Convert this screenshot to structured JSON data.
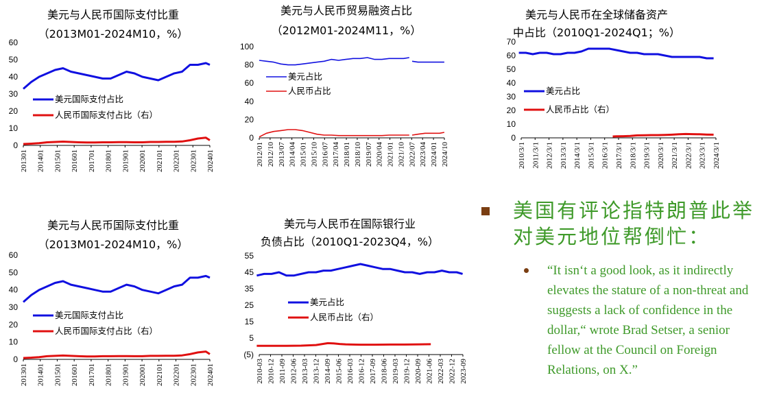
{
  "chart_data": [
    {
      "id": "chart1",
      "type": "line",
      "title": "美元与人民币国际支付比重",
      "subtitle": "（2013M01-2024M10，%）",
      "ylim": [
        0,
        60
      ],
      "yticks": [
        0,
        10,
        20,
        30,
        40,
        50,
        60
      ],
      "xticks": [
        "201301",
        "201401",
        "201501",
        "201601",
        "201701",
        "201801",
        "201901",
        "202001",
        "202101",
        "202201",
        "202301",
        "202401"
      ],
      "x_range": [
        "2013-01",
        "2024-10"
      ],
      "legend": [
        "美元国际支付占比",
        "人民币国际支付占比（右）"
      ],
      "legend_position": "middle-left",
      "series": [
        {
          "name": "美元国际支付占比",
          "color": "#1010e0",
          "x": [
            2013.0,
            2013.5,
            2014.0,
            2014.5,
            2015.0,
            2015.5,
            2016.0,
            2016.5,
            2017.0,
            2017.5,
            2018.0,
            2018.5,
            2019.0,
            2019.5,
            2020.0,
            2020.5,
            2021.0,
            2021.5,
            2022.0,
            2022.5,
            2023.0,
            2023.5,
            2024.0,
            2024.5,
            2024.75
          ],
          "values": [
            33,
            37,
            40,
            42,
            44,
            45,
            43,
            42,
            41,
            40,
            39,
            39,
            41,
            43,
            42,
            40,
            39,
            38,
            40,
            42,
            43,
            47,
            47,
            48,
            47
          ]
        },
        {
          "name": "人民币国际支付占比（右）",
          "color": "#e01010",
          "x": [
            2013.0,
            2013.5,
            2014.0,
            2014.5,
            2015.0,
            2015.5,
            2016.0,
            2016.5,
            2017.0,
            2017.5,
            2018.0,
            2018.5,
            2019.0,
            2019.5,
            2020.0,
            2020.5,
            2021.0,
            2021.5,
            2022.0,
            2022.5,
            2023.0,
            2023.5,
            2024.0,
            2024.5,
            2024.75
          ],
          "values": [
            0.8,
            1.0,
            1.3,
            1.8,
            2.0,
            2.2,
            2.0,
            1.8,
            1.7,
            1.7,
            1.8,
            1.8,
            1.9,
            1.9,
            1.8,
            1.8,
            2.0,
            2.0,
            2.1,
            2.1,
            2.3,
            3.0,
            4.0,
            4.5,
            3.0
          ]
        }
      ]
    },
    {
      "id": "chart2",
      "type": "line",
      "title": "美元与人民币贸易融资占比",
      "subtitle": "（2012M01-2024M11，%）",
      "ylim": [
        0,
        100
      ],
      "yticks": [
        0,
        20,
        40,
        60,
        80,
        100
      ],
      "xticks": [
        "2012/01",
        "2012/10",
        "2013/07",
        "2014/04",
        "2015/01",
        "2015/10",
        "2016/07",
        "2017/04",
        "2018/01",
        "2018/10",
        "2019/07",
        "2020/04",
        "2021/01",
        "2021/10",
        "2022/07",
        "2023/04",
        "2024/01",
        "2024/10"
      ],
      "x_range": [
        "2012-01",
        "2024-11"
      ],
      "legend": [
        "美元占比",
        "人民币占比"
      ],
      "legend_position": "middle-left",
      "series": [
        {
          "name": "美元占比",
          "color": "#1010e0",
          "x": [
            2012.0,
            2012.5,
            2013.0,
            2013.5,
            2014.0,
            2014.5,
            2015.0,
            2015.5,
            2016.0,
            2016.5,
            2017.0,
            2017.5,
            2018.0,
            2018.5,
            2019.0,
            2019.5,
            2020.0,
            2020.5,
            2021.0,
            2021.5,
            2022.0,
            2022.4,
            null,
            2022.6,
            2023.0,
            2023.5,
            2024.0,
            2024.5,
            2024.83
          ],
          "values": [
            85,
            84,
            83,
            81,
            80,
            80,
            81,
            82,
            83,
            84,
            86,
            85,
            86,
            87,
            87,
            88,
            86,
            86,
            87,
            87,
            87,
            88,
            null,
            84,
            83,
            83,
            83,
            83,
            83
          ]
        },
        {
          "name": "人民币占比",
          "color": "#e01010",
          "x": [
            2012.0,
            2012.5,
            2013.0,
            2013.5,
            2014.0,
            2014.5,
            2015.0,
            2015.5,
            2016.0,
            2016.5,
            2017.0,
            2017.5,
            2018.0,
            2018.5,
            2019.0,
            2019.5,
            2020.0,
            2020.5,
            2021.0,
            2021.5,
            2022.0,
            2022.4,
            null,
            2022.6,
            2023.0,
            2023.5,
            2024.0,
            2024.5,
            2024.83
          ],
          "values": [
            1,
            5,
            7,
            8,
            9,
            9,
            8,
            6,
            4,
            3,
            3,
            2.5,
            2.5,
            2.5,
            2.5,
            2.5,
            2.5,
            2.5,
            3,
            3,
            3,
            3,
            null,
            3,
            4,
            5,
            5,
            5,
            6
          ]
        }
      ]
    },
    {
      "id": "chart3",
      "type": "line",
      "title": "美元与人民币在全球储备资产",
      "subtitle": "中占比（2010Q1-2024Q1；%）",
      "ylim": [
        0,
        70
      ],
      "yticks": [
        0,
        10,
        20,
        30,
        40,
        50,
        60,
        70
      ],
      "xticks": [
        "2010/3/1",
        "2011/3/1",
        "2012/3/1",
        "2013/3/1",
        "2014/3/1",
        "2015/3/1",
        "2016/3/1",
        "2017/3/1",
        "2018/3/1",
        "2019/3/1",
        "2020/3/1",
        "2021/3/1",
        "2022/3/1",
        "2023/3/1",
        "2024/3/1"
      ],
      "x_range": [
        "2010-03",
        "2024-03"
      ],
      "legend": [
        "美元占比",
        "人民币占比（右）"
      ],
      "legend_position": "middle-left",
      "series": [
        {
          "name": "美元占比",
          "color": "#1010e0",
          "x": [
            2010,
            2010.5,
            2011,
            2011.5,
            2012,
            2012.5,
            2013,
            2013.5,
            2014,
            2014.5,
            2015,
            2015.5,
            2016,
            2016.5,
            2017,
            2017.5,
            2018,
            2018.5,
            2019,
            2019.5,
            2020,
            2020.5,
            2021,
            2021.5,
            2022,
            2022.5,
            2023,
            2023.5,
            2024
          ],
          "values": [
            62,
            62,
            61,
            62,
            62,
            61,
            61,
            62,
            62,
            63,
            65,
            65,
            65,
            65,
            64,
            63,
            62,
            62,
            61,
            61,
            61,
            60,
            59,
            59,
            59,
            59,
            59,
            58,
            58
          ]
        },
        {
          "name": "人民币占比（右）",
          "color": "#e01010",
          "x": [
            2016.75,
            2017,
            2017.5,
            2018,
            2018.5,
            2019,
            2019.5,
            2020,
            2020.5,
            2021,
            2021.5,
            2022,
            2022.5,
            2023,
            2023.5,
            2024
          ],
          "values": [
            1.0,
            1.1,
            1.2,
            1.4,
            1.8,
            1.9,
            2.0,
            2.0,
            2.1,
            2.3,
            2.6,
            2.8,
            2.7,
            2.6,
            2.4,
            2.3
          ]
        }
      ]
    },
    {
      "id": "chart4",
      "type": "line",
      "title": "美元与人民币国际支付比重",
      "subtitle": "（2013M01-2024M10，%）",
      "ylim": [
        0,
        60
      ],
      "yticks": [
        0,
        10,
        20,
        30,
        40,
        50,
        60
      ],
      "xticks": [
        "201301",
        "201401",
        "201501",
        "201601",
        "201701",
        "201801",
        "201901",
        "202001",
        "202101",
        "202201",
        "202301",
        "202401"
      ],
      "x_range": [
        "2013-01",
        "2024-10"
      ],
      "legend": [
        "美元国际支付占比",
        "人民币国际支付占比（右）"
      ],
      "legend_position": "middle-left",
      "series": [
        {
          "name": "美元国际支付占比",
          "color": "#1010e0",
          "x": [
            2013.0,
            2013.5,
            2014.0,
            2014.5,
            2015.0,
            2015.5,
            2016.0,
            2016.5,
            2017.0,
            2017.5,
            2018.0,
            2018.5,
            2019.0,
            2019.5,
            2020.0,
            2020.5,
            2021.0,
            2021.5,
            2022.0,
            2022.5,
            2023.0,
            2023.5,
            2024.0,
            2024.5,
            2024.75
          ],
          "values": [
            33,
            37,
            40,
            42,
            44,
            45,
            43,
            42,
            41,
            40,
            39,
            39,
            41,
            43,
            42,
            40,
            39,
            38,
            40,
            42,
            43,
            47,
            47,
            48,
            47
          ]
        },
        {
          "name": "人民币国际支付占比（右）",
          "color": "#e01010",
          "x": [
            2013.0,
            2013.5,
            2014.0,
            2014.5,
            2015.0,
            2015.5,
            2016.0,
            2016.5,
            2017.0,
            2017.5,
            2018.0,
            2018.5,
            2019.0,
            2019.5,
            2020.0,
            2020.5,
            2021.0,
            2021.5,
            2022.0,
            2022.5,
            2023.0,
            2023.5,
            2024.0,
            2024.5,
            2024.75
          ],
          "values": [
            0.8,
            1.0,
            1.3,
            1.8,
            2.0,
            2.2,
            2.0,
            1.8,
            1.7,
            1.7,
            1.8,
            1.8,
            1.9,
            1.9,
            1.8,
            1.8,
            2.0,
            2.0,
            2.1,
            2.1,
            2.3,
            3.0,
            4.0,
            4.5,
            3.0
          ]
        }
      ]
    },
    {
      "id": "chart5",
      "type": "line",
      "title": "美元与人民币在国际银行业",
      "subtitle": "负债占比（2010Q1-2023Q4，%）",
      "ylim": [
        -5,
        55
      ],
      "yticks": [
        -5,
        5,
        15,
        25,
        35,
        45,
        55
      ],
      "ytick_labels": [
        "(5)",
        "5",
        "15",
        "25",
        "35",
        "45",
        "55"
      ],
      "xticks": [
        "2010-03",
        "2010-12",
        "2011-09",
        "2012-06",
        "2013-03",
        "2013-12",
        "2014-09",
        "2015-06",
        "2016-03",
        "2016-12",
        "2017-09",
        "2018-06",
        "2019-03",
        "2019-12",
        "2020-09",
        "2021-06",
        "2022-03",
        "2022-12",
        "2023-09"
      ],
      "x_range": [
        "2010-03",
        "2023-12"
      ],
      "legend": [
        "美元占比",
        "人民币占比（右）"
      ],
      "legend_position": "middle-left",
      "series": [
        {
          "name": "美元占比",
          "color": "#1010e0",
          "x": [
            2010,
            2010.5,
            2011,
            2011.5,
            2012,
            2012.5,
            2013,
            2013.5,
            2014,
            2014.5,
            2015,
            2015.5,
            2016,
            2016.5,
            2017,
            2017.5,
            2018,
            2018.5,
            2019,
            2019.5,
            2020,
            2020.5,
            2021,
            2021.5,
            2022,
            2022.5,
            2023,
            2023.5,
            2023.9
          ],
          "values": [
            43,
            44,
            44,
            45,
            43,
            43,
            44,
            45,
            45,
            46,
            46,
            47,
            48,
            49,
            50,
            49,
            48,
            47,
            47,
            46,
            45,
            45,
            44,
            45,
            45,
            46,
            45,
            45,
            44
          ]
        },
        {
          "name": "人民币占比（右）",
          "color": "#e01010",
          "x": [
            2010,
            2011,
            2012,
            2013,
            2014,
            2014.8,
            2015.2,
            2015.6,
            2016,
            2017,
            2018,
            2019,
            2020,
            2021,
            2021.75
          ],
          "values": [
            0.3,
            0.3,
            0.3,
            0.4,
            0.8,
            1.9,
            1.8,
            1.4,
            1.2,
            1.0,
            1.0,
            1.1,
            1.1,
            1.2,
            1.3
          ]
        }
      ]
    }
  ],
  "bullets": {
    "main_point": "美国有评论指特朗普此举对美元地位帮倒忙：",
    "quote": "“It isn‘t a good look, as it indirectly elevates the stature of a non-threat and suggests a lack of confidence in the dollar,“ wrote Brad Setser, a senior fellow at the Council on Foreign Relations, on X.”",
    "text_color": "#3f9a2a",
    "marker_color": "#7a3e12"
  }
}
